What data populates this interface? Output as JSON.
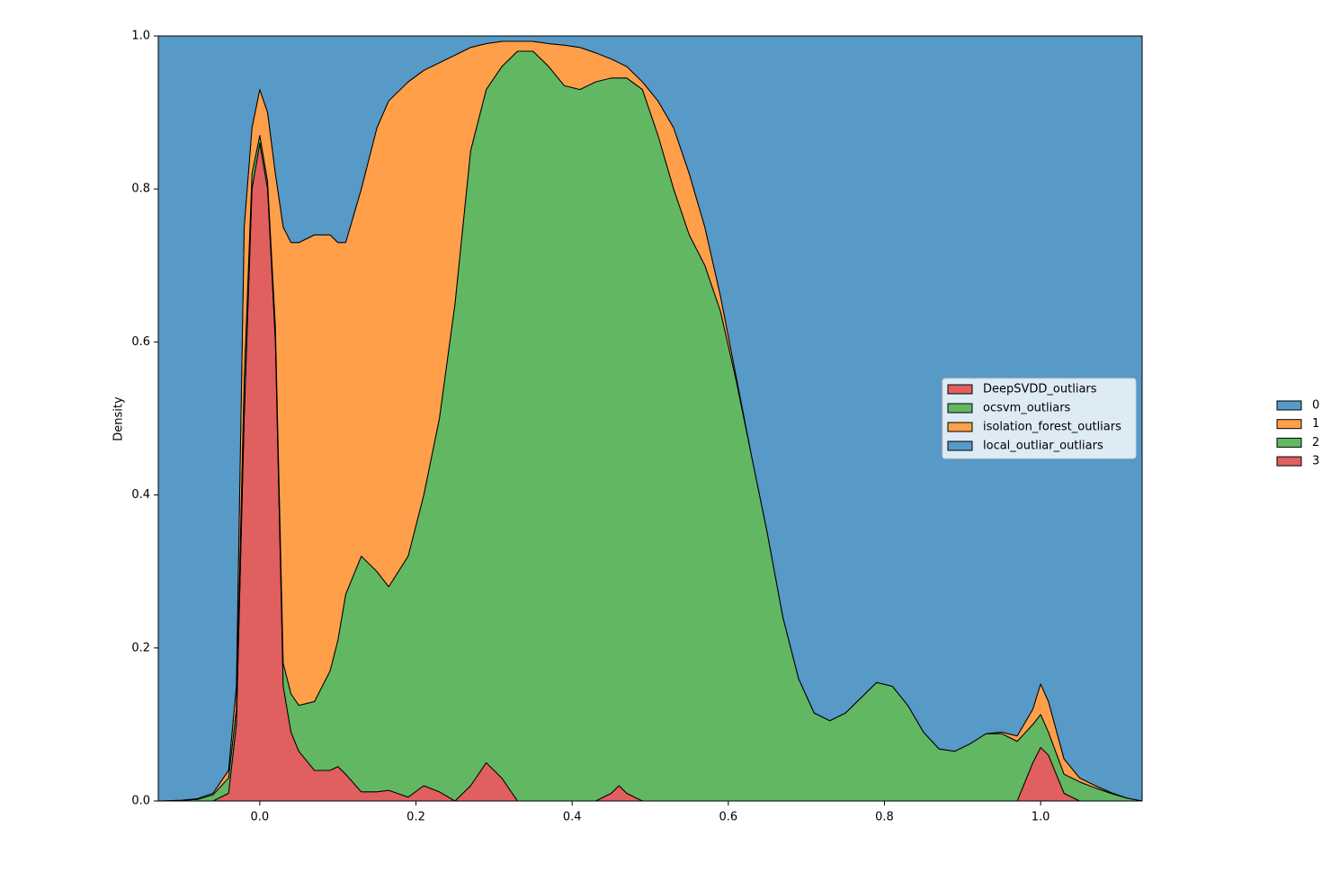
{
  "chart_data": {
    "type": "stacked_area_fill",
    "ylabel": "Density",
    "xlim": [
      -0.13,
      1.13
    ],
    "ylim": [
      0,
      1
    ],
    "xticks": [
      {
        "value": 0,
        "label": "0.0"
      },
      {
        "value": 0.2,
        "label": "0.2"
      },
      {
        "value": 0.4,
        "label": "0.4"
      },
      {
        "value": 0.6,
        "label": "0.6"
      },
      {
        "value": 0.8,
        "label": "0.8"
      },
      {
        "value": 1,
        "label": "1.0"
      }
    ],
    "yticks": [
      {
        "value": 0,
        "label": "0.0"
      },
      {
        "value": 0.2,
        "label": "0.2"
      },
      {
        "value": 0.4,
        "label": "0.4"
      },
      {
        "value": 0.6,
        "label": "0.6"
      },
      {
        "value": 0.8,
        "label": "0.8"
      },
      {
        "value": 1,
        "label": "1.0"
      }
    ],
    "x": [
      -0.13,
      -0.1,
      -0.08,
      -0.06,
      -0.04,
      -0.03,
      -0.02,
      -0.01,
      0,
      0.01,
      0.02,
      0.03,
      0.04,
      0.05,
      0.07,
      0.09,
      0.1,
      0.11,
      0.13,
      0.15,
      0.165,
      0.19,
      0.21,
      0.23,
      0.25,
      0.27,
      0.29,
      0.31,
      0.33,
      0.35,
      0.37,
      0.39,
      0.41,
      0.43,
      0.45,
      0.46,
      0.47,
      0.49,
      0.51,
      0.53,
      0.55,
      0.57,
      0.59,
      0.61,
      0.63,
      0.65,
      0.67,
      0.69,
      0.71,
      0.73,
      0.75,
      0.77,
      0.79,
      0.81,
      0.83,
      0.85,
      0.87,
      0.89,
      0.91,
      0.93,
      0.95,
      0.97,
      0.99,
      1.0,
      1.01,
      1.03,
      1.05,
      1.07,
      1.09,
      1.11,
      1.13
    ],
    "series": [
      {
        "name": "3",
        "label": "DeepSVDD_outliars",
        "color": "#e05f5f",
        "values": [
          0,
          0,
          0,
          0,
          0.01,
          0.1,
          0.5,
          0.8,
          0.86,
          0.8,
          0.6,
          0.15,
          0.09,
          0.065,
          0.04,
          0.04,
          0.045,
          0.035,
          0.012,
          0.012,
          0.014,
          0.005,
          0.02,
          0.012,
          0,
          0.02,
          0.05,
          0.03,
          0,
          0,
          0,
          0,
          0,
          0,
          0.01,
          0.02,
          0.01,
          0,
          0,
          0,
          0,
          0,
          0,
          0,
          0,
          0,
          0,
          0,
          0,
          0,
          0,
          0,
          0,
          0,
          0,
          0,
          0,
          0,
          0,
          0,
          0,
          0,
          0.05,
          0.07,
          0.06,
          0.01,
          0,
          0,
          0,
          0,
          0
        ]
      },
      {
        "name": "2",
        "label": "ocsvm_outliars",
        "color": "#62b862",
        "values": [
          0,
          0.001,
          0.002,
          0.008,
          0.02,
          0.02,
          0.05,
          0.02,
          0.01,
          0.01,
          0.02,
          0.03,
          0.05,
          0.06,
          0.09,
          0.13,
          0.165,
          0.235,
          0.308,
          0.288,
          0.266,
          0.315,
          0.38,
          0.488,
          0.65,
          0.83,
          0.88,
          0.93,
          0.98,
          0.98,
          0.96,
          0.935,
          0.93,
          0.94,
          0.935,
          0.925,
          0.935,
          0.93,
          0.87,
          0.8,
          0.74,
          0.7,
          0.64,
          0.55,
          0.45,
          0.35,
          0.24,
          0.16,
          0.115,
          0.105,
          0.115,
          0.135,
          0.155,
          0.15,
          0.125,
          0.09,
          0.068,
          0.065,
          0.075,
          0.088,
          0.088,
          0.078,
          0.05,
          0.043,
          0.03,
          0.025,
          0.025,
          0.017,
          0.01,
          0.004,
          0
        ]
      },
      {
        "name": "1",
        "label": "isolation_forest_outliars",
        "color": "#ff9f4a",
        "values": [
          0,
          0,
          0.001,
          0.002,
          0.01,
          0.03,
          0.2,
          0.06,
          0.06,
          0.09,
          0.2,
          0.57,
          0.59,
          0.605,
          0.61,
          0.57,
          0.52,
          0.46,
          0.48,
          0.58,
          0.635,
          0.62,
          0.555,
          0.465,
          0.325,
          0.135,
          0.06,
          0.033,
          0.013,
          0.013,
          0.03,
          0.053,
          0.055,
          0.038,
          0.025,
          0.02,
          0.015,
          0.01,
          0.045,
          0.08,
          0.08,
          0.05,
          0.02,
          0.005,
          0,
          0,
          0,
          0,
          0,
          0,
          0,
          0,
          0,
          0,
          0,
          0,
          0,
          0,
          0,
          0,
          0.002,
          0.007,
          0.02,
          0.04,
          0.04,
          0.02,
          0.005,
          0.003,
          0.001,
          0,
          0
        ]
      },
      {
        "name": "0",
        "label": "local_outliar_outliars",
        "color": "#5799c7",
        "values": [
          1,
          0.999,
          0.997,
          0.99,
          0.96,
          0.85,
          0.25,
          0.12,
          0.07,
          0.1,
          0.18,
          0.25,
          0.27,
          0.27,
          0.26,
          0.26,
          0.27,
          0.27,
          0.2,
          0.12,
          0.085,
          0.06,
          0.045,
          0.035,
          0.025,
          0.015,
          0.01,
          0.007,
          0.007,
          0.007,
          0.01,
          0.012,
          0.015,
          0.022,
          0.03,
          0.035,
          0.04,
          0.06,
          0.085,
          0.12,
          0.18,
          0.25,
          0.34,
          0.445,
          0.55,
          0.65,
          0.76,
          0.84,
          0.885,
          0.895,
          0.885,
          0.865,
          0.845,
          0.85,
          0.875,
          0.91,
          0.932,
          0.935,
          0.925,
          0.912,
          0.91,
          0.915,
          0.88,
          0.847,
          0.87,
          0.945,
          0.97,
          0.98,
          0.989,
          0.996,
          1
        ]
      }
    ]
  }
}
